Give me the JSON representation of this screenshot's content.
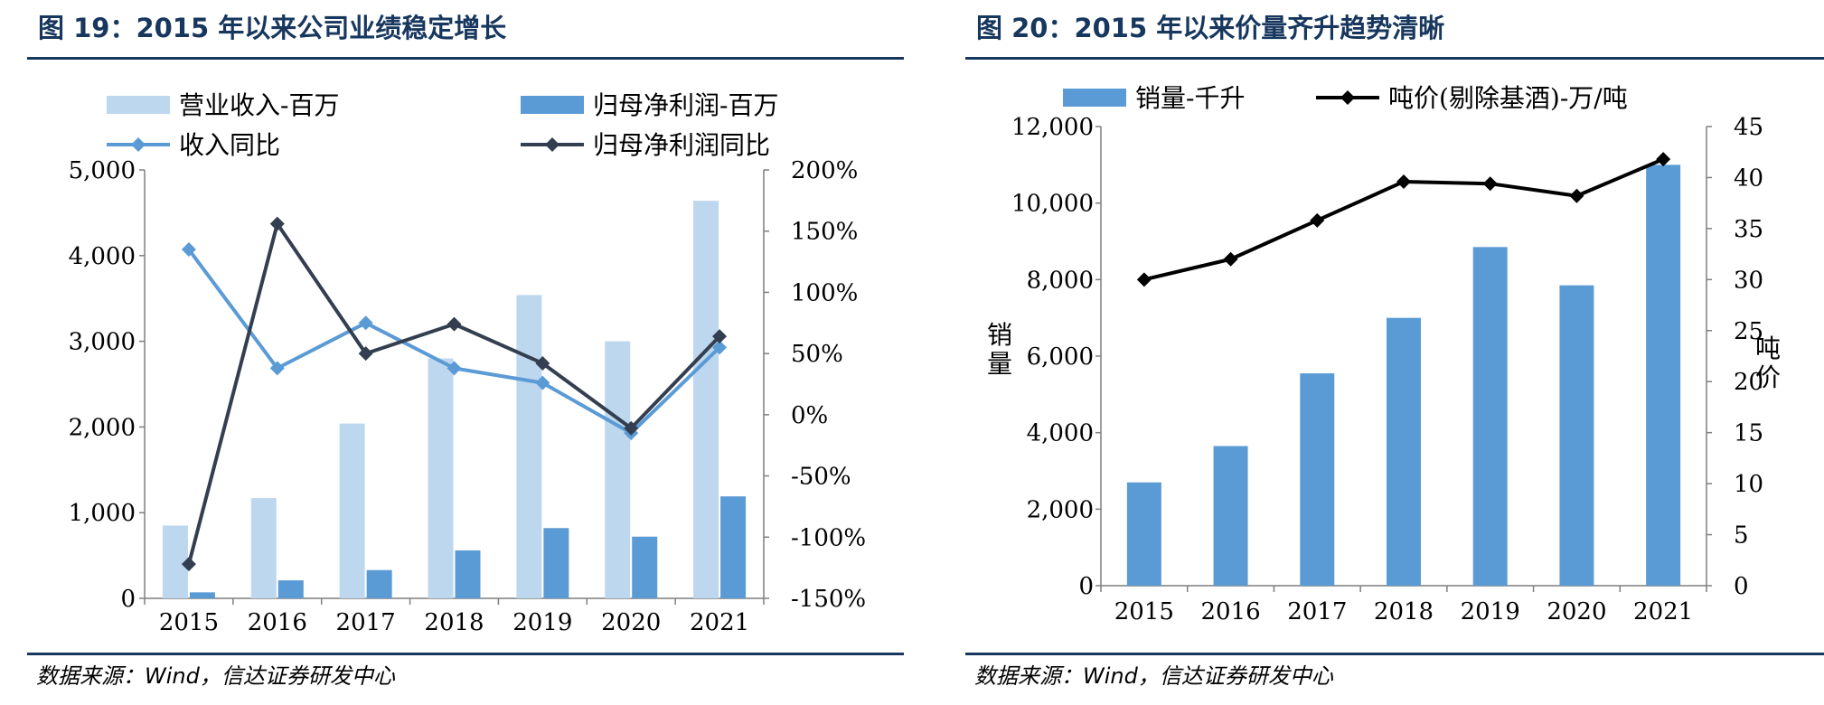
{
  "chart_data": [
    {
      "type": "bar",
      "title": "图 19：2015 年以来公司业绩稳定增长",
      "source": "数据来源：Wind，信达证券研发中心",
      "categories": [
        "2015",
        "2016",
        "2017",
        "2018",
        "2019",
        "2020",
        "2021"
      ],
      "series": [
        {
          "name": "营业收入-百万",
          "type": "bar",
          "axis": "left",
          "color": "#bdd7ee",
          "values": [
            850,
            1170,
            2040,
            2800,
            3540,
            3000,
            4640
          ]
        },
        {
          "name": "归母净利润-百万",
          "type": "bar",
          "axis": "left",
          "color": "#5b9bd5",
          "values": [
            70,
            210,
            330,
            560,
            820,
            720,
            1190
          ]
        },
        {
          "name": "收入同比",
          "type": "line",
          "axis": "right",
          "color": "#5b9bd5",
          "marker": "diamond",
          "values": [
            135,
            38,
            75,
            38,
            26,
            -15,
            55
          ]
        },
        {
          "name": "归母净利润同比",
          "type": "line",
          "axis": "right",
          "color": "#333f50",
          "marker": "diamond",
          "values": [
            -122,
            156,
            50,
            74,
            42,
            -11,
            64
          ]
        }
      ],
      "ylim": [
        0,
        5000
      ],
      "yticks": [
        0,
        1000,
        2000,
        3000,
        4000,
        5000
      ],
      "ytick_labels": [
        "0",
        "1,000",
        "2,000",
        "3,000",
        "4,000",
        "5,000"
      ],
      "y2lim": [
        -150,
        200
      ],
      "y2ticks": [
        -150,
        -100,
        -50,
        0,
        50,
        100,
        150,
        200
      ],
      "y2tick_labels": [
        "-150%",
        "-100%",
        "-50%",
        "0%",
        "50%",
        "100%",
        "150%",
        "200%"
      ],
      "legend": "top"
    },
    {
      "type": "bar",
      "title": "图 20：2015 年以来价量齐升趋势清晰",
      "source": "数据来源：Wind，信达证券研发中心",
      "categories": [
        "2015",
        "2016",
        "2017",
        "2018",
        "2019",
        "2020",
        "2021"
      ],
      "series": [
        {
          "name": "销量-千升",
          "type": "bar",
          "axis": "left",
          "color": "#5b9bd5",
          "values": [
            2700,
            3650,
            5550,
            7000,
            8850,
            7850,
            11000
          ]
        },
        {
          "name": "吨价(剔除基酒)-万/吨",
          "type": "line",
          "axis": "right",
          "color": "#000000",
          "marker": "diamond",
          "values": [
            30.0,
            32.0,
            35.8,
            39.6,
            39.4,
            38.2,
            41.8
          ]
        }
      ],
      "ylabel": "销量",
      "y2label": "吨价",
      "ylim": [
        0,
        12000
      ],
      "yticks": [
        0,
        2000,
        4000,
        6000,
        8000,
        10000,
        12000
      ],
      "ytick_labels": [
        "0",
        "2,000",
        "4,000",
        "6,000",
        "8,000",
        "10,000",
        "12,000"
      ],
      "y2lim": [
        0,
        45
      ],
      "y2ticks": [
        0,
        5,
        10,
        15,
        20,
        25,
        30,
        35,
        40,
        45
      ],
      "y2tick_labels": [
        "0",
        "5",
        "10",
        "15",
        "20",
        "25",
        "30",
        "35",
        "40",
        "45"
      ],
      "legend": "top"
    }
  ]
}
